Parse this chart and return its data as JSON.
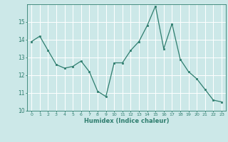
{
  "x": [
    0,
    1,
    2,
    3,
    4,
    5,
    6,
    7,
    8,
    9,
    10,
    11,
    12,
    13,
    14,
    15,
    16,
    17,
    18,
    19,
    20,
    21,
    22,
    23
  ],
  "y": [
    13.9,
    14.2,
    13.4,
    12.6,
    12.4,
    12.5,
    12.8,
    12.2,
    11.1,
    10.8,
    12.7,
    12.7,
    13.4,
    13.9,
    14.8,
    15.9,
    13.5,
    14.9,
    12.9,
    12.2,
    11.8,
    11.2,
    10.6,
    10.5
  ],
  "xlabel": "Humidex (Indice chaleur)",
  "ylim": [
    10,
    16
  ],
  "xlim": [
    -0.5,
    23.5
  ],
  "yticks": [
    10,
    11,
    12,
    13,
    14,
    15
  ],
  "xticks": [
    0,
    1,
    2,
    3,
    4,
    5,
    6,
    7,
    8,
    9,
    10,
    11,
    12,
    13,
    14,
    15,
    16,
    17,
    18,
    19,
    20,
    21,
    22,
    23
  ],
  "line_color": "#2e7d6e",
  "marker_color": "#2e7d6e",
  "bg_color": "#cce8e8",
  "grid_color": "#ffffff",
  "tick_label_color": "#2e7d6e",
  "axis_label_color": "#2e7d6e"
}
